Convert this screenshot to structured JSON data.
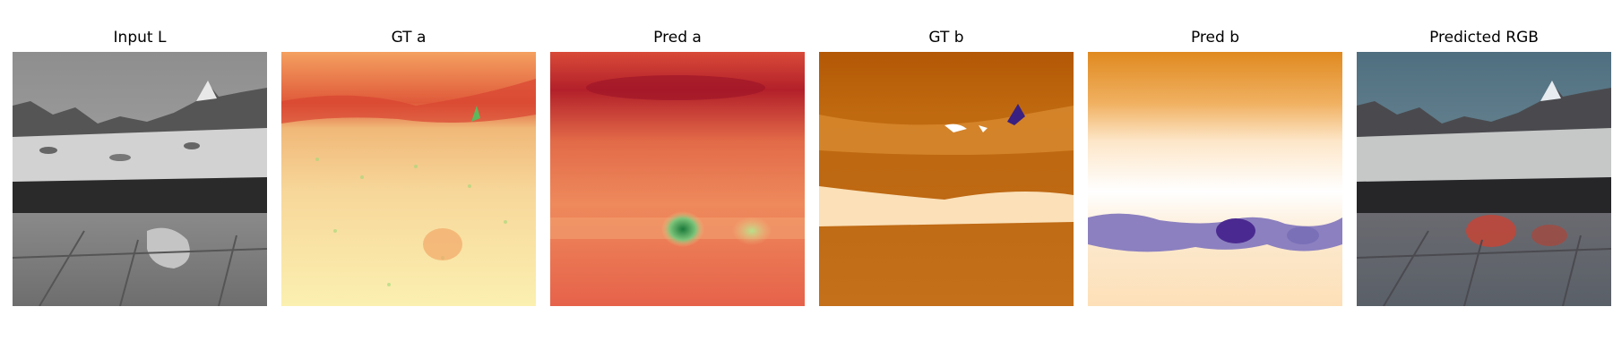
{
  "panels": [
    {
      "title": "Input L"
    },
    {
      "title": "GT a"
    },
    {
      "title": "Pred a"
    },
    {
      "title": "GT b"
    },
    {
      "title": "Pred b"
    },
    {
      "title": "Predicted RGB"
    }
  ]
}
